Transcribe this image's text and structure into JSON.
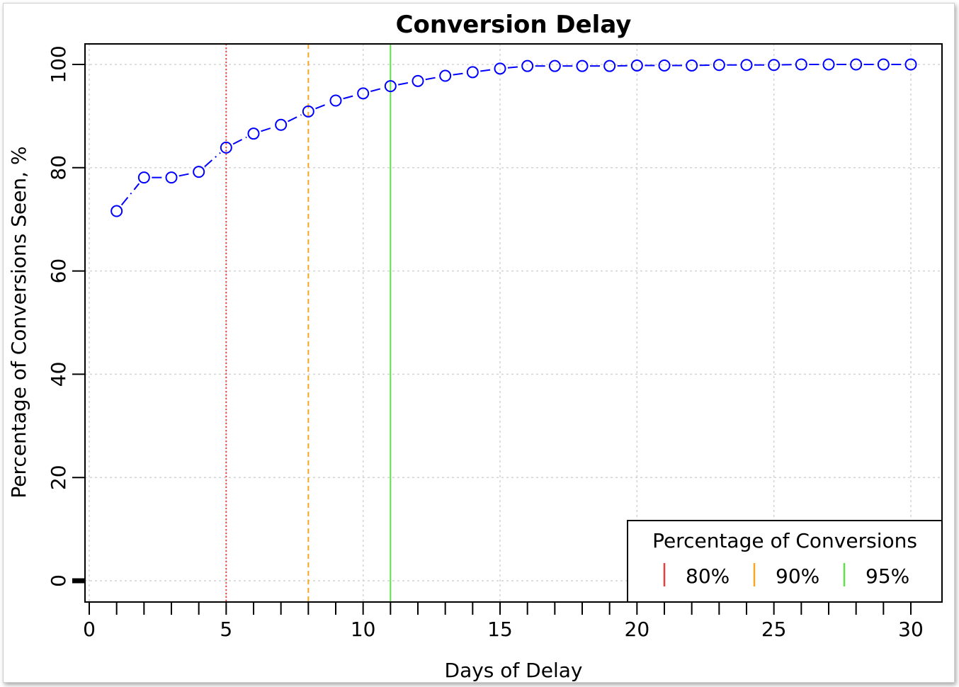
{
  "chart_data": {
    "type": "scatter",
    "title": "Conversion Delay",
    "xlabel": "Days of Delay",
    "ylabel": "Percentage of Conversions Seen, %",
    "xlim": [
      0,
      31
    ],
    "ylim": [
      -4,
      104
    ],
    "xticks": [
      0,
      5,
      10,
      15,
      20,
      25,
      30
    ],
    "yticks": [
      0,
      20,
      40,
      60,
      80,
      100
    ],
    "grid": true,
    "series": [
      {
        "color": "#0000ff",
        "marker": "open-circle",
        "line": "dash-dot",
        "x": [
          1,
          2,
          3,
          4,
          5,
          6,
          7,
          8,
          9,
          10,
          11,
          12,
          13,
          14,
          15,
          16,
          17,
          18,
          19,
          20,
          21,
          22,
          23,
          24,
          25,
          26,
          27,
          28,
          29,
          30
        ],
        "y": [
          71.6,
          78.1,
          78.1,
          79.2,
          83.9,
          86.6,
          88.3,
          90.9,
          93.0,
          94.4,
          95.8,
          96.8,
          97.8,
          98.5,
          99.2,
          99.7,
          99.7,
          99.7,
          99.7,
          99.8,
          99.8,
          99.8,
          99.9,
          99.9,
          99.9,
          100,
          100,
          100,
          100,
          100
        ]
      }
    ],
    "vlines": [
      {
        "x": 5,
        "label": "80%",
        "color": "#e8403f",
        "style": "dotted"
      },
      {
        "x": 8,
        "label": "90%",
        "color": "#f5a623",
        "style": "dashed"
      },
      {
        "x": 11,
        "label": "95%",
        "color": "#5fe04a",
        "style": "solid"
      }
    ],
    "legend": {
      "title": "Percentage of Conversions",
      "position": "bottom-right"
    }
  }
}
